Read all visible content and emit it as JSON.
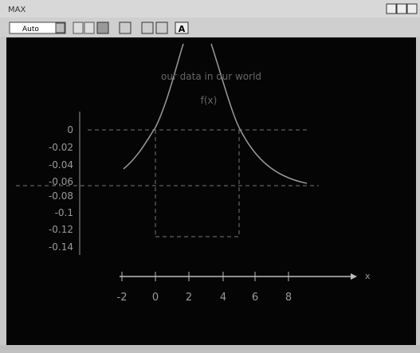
{
  "window": {
    "title": "MAX"
  },
  "toolbar": {
    "dropdown": "Auto",
    "text_button": "A"
  },
  "plot": {
    "caption": "our data in our world",
    "function_label": "f(x)",
    "y_labels": [
      "0",
      "-0.02",
      "-0.04",
      "-0.06",
      "-0.08",
      "-0.1",
      "-0.12",
      "-0.14"
    ],
    "x_labels": [
      "-2",
      "0",
      "2",
      "4",
      "6",
      "8"
    ],
    "x_axis_name": "x"
  }
}
